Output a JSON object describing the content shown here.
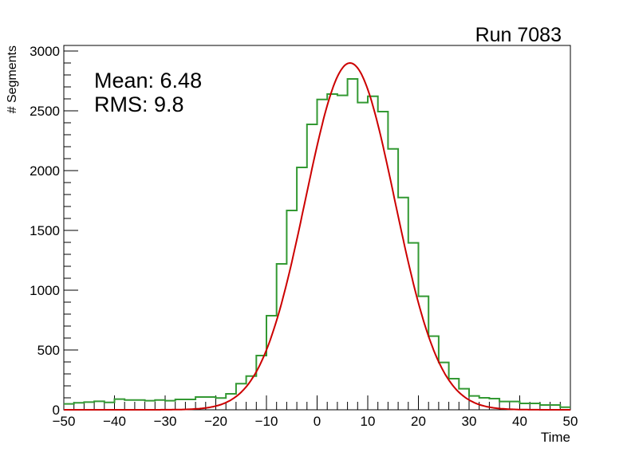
{
  "chart_data": {
    "type": "bar",
    "title": "Run 7083",
    "xlabel": "Time",
    "ylabel": "# Segments",
    "xlim": [
      -50,
      50
    ],
    "ylim": [
      0,
      3000
    ],
    "x_ticks": [
      -50,
      -40,
      -30,
      -20,
      -10,
      0,
      10,
      20,
      30,
      40,
      50
    ],
    "x_tick_labels": [
      "−50",
      "−40",
      "−30",
      "−20",
      "−10",
      "0",
      "10",
      "20",
      "30",
      "40",
      "50"
    ],
    "y_ticks": [
      0,
      500,
      1000,
      1500,
      2000,
      2500,
      3000
    ],
    "y_tick_labels": [
      "0",
      "500",
      "1000",
      "1500",
      "2000",
      "2500",
      "3000"
    ],
    "grid": false,
    "stats": {
      "mean_label": "Mean: 6.48",
      "rms_label": "RMS:  9.8"
    },
    "bin_width": 2,
    "bin_low_edges": [
      -50,
      -48,
      -46,
      -44,
      -42,
      -40,
      -38,
      -36,
      -34,
      -32,
      -30,
      -28,
      -26,
      -24,
      -22,
      -20,
      -18,
      -16,
      -14,
      -12,
      -10,
      -8,
      -6,
      -4,
      -2,
      0,
      2,
      4,
      6,
      8,
      10,
      12,
      14,
      16,
      18,
      20,
      22,
      24,
      26,
      28,
      30,
      32,
      34,
      36,
      38,
      40,
      42,
      44,
      46,
      48
    ],
    "series": [
      {
        "name": "histogram",
        "color": "#339933",
        "values": [
          49,
          58,
          64,
          71,
          62,
          89,
          82,
          82,
          76,
          82,
          76,
          87,
          87,
          107,
          107,
          98,
          133,
          218,
          282,
          453,
          787,
          1220,
          1667,
          2027,
          2387,
          2595,
          2640,
          2629,
          2767,
          2569,
          2622,
          2493,
          2182,
          1775,
          1396,
          949,
          616,
          396,
          260,
          176,
          116,
          100,
          93,
          69,
          69,
          53,
          53,
          40,
          40,
          22
        ]
      },
      {
        "name": "gaussian-fit",
        "color": "#cc0000",
        "type": "line",
        "params": {
          "amplitude": 2900,
          "mean": 6.5,
          "sigma": 8.8
        }
      }
    ]
  }
}
